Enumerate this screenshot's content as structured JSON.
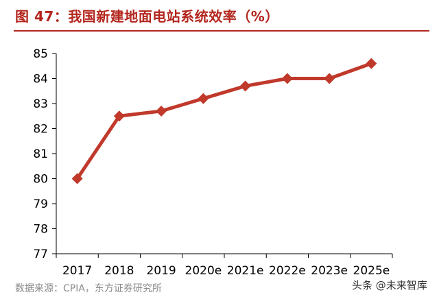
{
  "title": "图 47：我国新建地面电站系统效率（%）",
  "source": "数据来源：CPIA，东方证券研究所",
  "watermark": "头条 @未来智库",
  "colors": {
    "title": "#b3261e",
    "series": "#c0392b",
    "axis": "#000000"
  },
  "chart_data": {
    "type": "line",
    "title": "",
    "xlabel": "",
    "ylabel": "",
    "categories": [
      "2017",
      "2018",
      "2019",
      "2020e",
      "2021e",
      "2022e",
      "2023e",
      "2025e"
    ],
    "series": [
      {
        "values": [
          80.0,
          82.5,
          82.7,
          83.2,
          83.7,
          84.0,
          84.0,
          84.6
        ],
        "marker": "diamond"
      }
    ],
    "ylim": [
      77,
      85
    ],
    "yticks": [
      "77",
      "78",
      "79",
      "80",
      "81",
      "82",
      "83",
      "84",
      "85"
    ],
    "grid": false,
    "legend": "none"
  }
}
